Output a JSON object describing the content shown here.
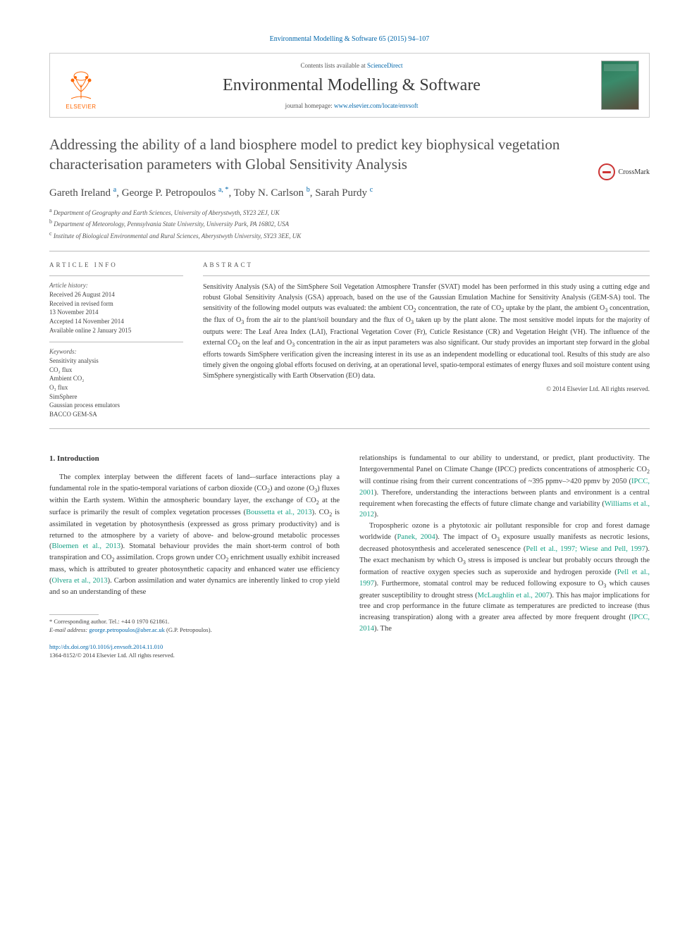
{
  "header": {
    "citation": "Environmental Modelling & Software 65 (2015) 94–107",
    "contents_prefix": "Contents lists available at ",
    "contents_link": "ScienceDirect",
    "journal_title": "Environmental Modelling & Software",
    "homepage_prefix": "journal homepage: ",
    "homepage_link": "www.elsevier.com/locate/envsoft",
    "publisher": "ELSEVIER",
    "crossmark": "CrossMark"
  },
  "article": {
    "title": "Addressing the ability of a land biosphere model to predict key biophysical vegetation characterisation parameters with Global Sensitivity Analysis",
    "authors_html": "Gareth Ireland <sup>a</sup>, George P. Petropoulos <sup>a, *</sup>, Toby N. Carlson <sup>b</sup>, Sarah Purdy <sup>c</sup>",
    "affiliations": [
      {
        "sup": "a",
        "text": "Department of Geography and Earth Sciences, University of Aberystwyth, SY23 2EJ, UK"
      },
      {
        "sup": "b",
        "text": "Department of Meteorology, Pennsylvania State University, University Park, PA 16802, USA"
      },
      {
        "sup": "c",
        "text": "Institute of Biological Environmental and Rural Sciences, Aberystwyth University, SY23 3EE, UK"
      }
    ]
  },
  "info": {
    "label": "ARTICLE INFO",
    "history_label": "Article history:",
    "history": [
      "Received 26 August 2014",
      "Received in revised form",
      "13 November 2014",
      "Accepted 14 November 2014",
      "Available online 2 January 2015"
    ],
    "keywords_label": "Keywords:",
    "keywords": [
      "Sensitivity analysis",
      "CO₂ flux",
      "Ambient CO₂",
      "O₃ flux",
      "SimSphere",
      "Gaussian process emulators",
      "BACCO GEM-SA"
    ]
  },
  "abstract": {
    "label": "ABSTRACT",
    "text": "Sensitivity Analysis (SA) of the SimSphere Soil Vegetation Atmosphere Transfer (SVAT) model has been performed in this study using a cutting edge and robust Global Sensitivity Analysis (GSA) approach, based on the use of the Gaussian Emulation Machine for Sensitivity Analysis (GEM-SA) tool. The sensitivity of the following model outputs was evaluated: the ambient CO₂ concentration, the rate of CO₂ uptake by the plant, the ambient O₃ concentration, the flux of O₃ from the air to the plant/soil boundary and the flux of O₃ taken up by the plant alone. The most sensitive model inputs for the majority of outputs were: The Leaf Area Index (LAI), Fractional Vegetation Cover (Fr), Cuticle Resistance (CR) and Vegetation Height (VH). The influence of the external CO₂ on the leaf and O₃ concentration in the air as input parameters was also significant. Our study provides an important step forward in the global efforts towards SimSphere verification given the increasing interest in its use as an independent modelling or educational tool. Results of this study are also timely given the ongoing global efforts focused on deriving, at an operational level, spatio-temporal estimates of energy fluxes and soil moisture content using SimSphere synergistically with Earth Observation (EO) data.",
    "copyright": "© 2014 Elsevier Ltd. All rights reserved."
  },
  "body": {
    "section_heading": "1. Introduction",
    "col1": {
      "p1": "The complex interplay between the different facets of land-–surface interactions play a fundamental role in the spatio-temporal variations of carbon dioxide (CO₂) and ozone (O₃) fluxes within the Earth system. Within the atmospheric boundary layer, the exchange of CO₂ at the surface is primarily the result of complex vegetation processes (Boussetta et al., 2013). CO₂ is assimilated in vegetation by photosynthesis (expressed as gross primary productivity) and is returned to the atmosphere by a variety of above- and below-ground metabolic processes (Bloemen et al., 2013). Stomatal behaviour provides the main short-term control of both transpiration and CO₂ assimilation. Crops grown under CO₂ enrichment usually exhibit increased mass, which is attributed to greater photosynthetic capacity and enhanced water use efficiency (Olvera et al., 2013). Carbon assimilation and water dynamics are inherently linked to crop yield and so an understanding of these"
    },
    "col2": {
      "p1": "relationships is fundamental to our ability to understand, or predict, plant productivity. The Intergovernmental Panel on Climate Change (IPCC) predicts concentrations of atmospheric CO₂ will continue rising from their current concentrations of ~395 ppmv–>420 ppmv by 2050 (IPCC, 2001). Therefore, understanding the interactions between plants and environment is a central requirement when forecasting the effects of future climate change and variability (Williams et al., 2012).",
      "p2": "Tropospheric ozone is a phytotoxic air pollutant responsible for crop and forest damage worldwide (Panek, 2004). The impact of O₃ exposure usually manifests as necrotic lesions, decreased photosynthesis and accelerated senescence (Pell et al., 1997; Wiese and Pell, 1997). The exact mechanism by which O₃ stress is imposed is unclear but probably occurs through the formation of reactive oxygen species such as superoxide and hydrogen peroxide (Pell et al., 1997). Furthermore, stomatal control may be reduced following exposure to O₃ which causes greater susceptibility to drought stress (McLaughlin et al., 2007). This has major implications for tree and crop performance in the future climate as temperatures are predicted to increase (thus increasing transpiration) along with a greater area affected by more frequent drought (IPCC, 2014). The"
    }
  },
  "footer": {
    "corresponding": "* Corresponding author. Tel.: +44 0 1970 621861.",
    "email_label": "E-mail address: ",
    "email": "george.petropoulos@aber.ac.uk",
    "email_suffix": " (G.P. Petropoulos).",
    "doi": "http://dx.doi.org/10.1016/j.envsoft.2014.11.010",
    "issn_copyright": "1364-8152/© 2014 Elsevier Ltd. All rights reserved."
  },
  "colors": {
    "link": "#0066aa",
    "cite": "#16a085",
    "elsevier": "#ff6600",
    "text": "#3a3a3a",
    "rule": "#bbbbbb"
  }
}
